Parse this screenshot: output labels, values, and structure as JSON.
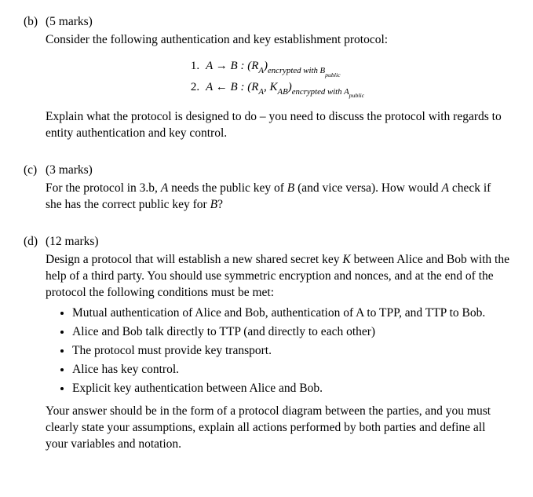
{
  "b": {
    "label": "(b)",
    "marks": "(5 marks)",
    "intro": "Consider the following authentication and key establishment protocol:",
    "proto1_num": "1.",
    "proto1_lhs": "A → B : (R",
    "proto1_sub1": "A",
    "proto1_mid": ")",
    "proto1_enc": "encrypted with B",
    "proto1_sub2": "public",
    "proto2_num": "2.",
    "proto2_lhs": "A ← B : (R",
    "proto2_sub1": "A",
    "proto2_comma": ", K",
    "proto2_sub2": "AB",
    "proto2_mid": ")",
    "proto2_enc": "encrypted with A",
    "proto2_sub3": "public",
    "explain": "Explain what the protocol is designed to do – you need to discuss the protocol with regards to entity authentication and key control."
  },
  "c": {
    "label": "(c)",
    "marks": "(3 marks)",
    "text1": "For the protocol in 3.b, ",
    "A": "A",
    "text2": " needs the public key of ",
    "B": "B",
    "text3": " (and vice versa). How would ",
    "text4": " check if she has the correct public key for ",
    "text5": "?"
  },
  "d": {
    "label": "(d)",
    "marks": "(12 marks)",
    "intro1": "Design a protocol that will establish a new shared secret key ",
    "K": "K",
    "intro2": " between Alice and Bob with the help of a third party. You should use symmetric encryption and nonces, and at the end of the protocol the following conditions must be met:",
    "bullets": [
      "Mutual authentication of Alice and Bob, authentication of A to TPP, and TTP to Bob.",
      "Alice and Bob talk directly to TTP (and directly to each other)",
      "The protocol must provide key transport.",
      "Alice has key control.",
      "Explicit key authentication between Alice and Bob."
    ],
    "closing": "Your answer should be in the form of a protocol diagram between the parties, and you must clearly state your assumptions, explain all actions performed by both parties and define all your variables and notation."
  }
}
